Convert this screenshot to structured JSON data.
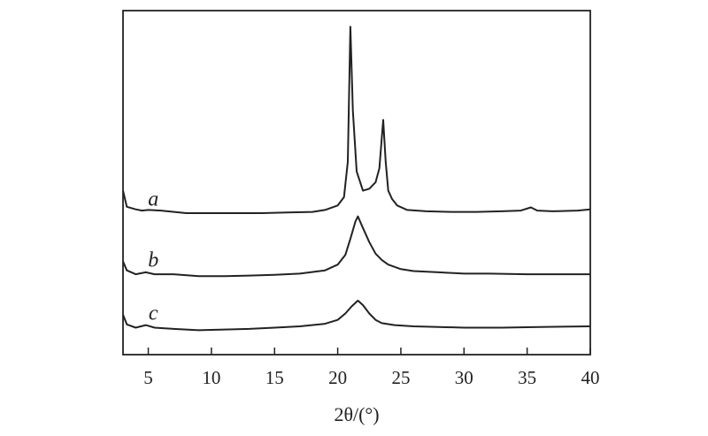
{
  "chart_data": {
    "type": "line",
    "title": "",
    "xlabel": "2θ/(°)",
    "ylabel": "",
    "xlim": [
      3,
      40
    ],
    "xticks": [
      5,
      10,
      15,
      20,
      25,
      30,
      35,
      40
    ],
    "xtick_labels": [
      "5",
      "10",
      "15",
      "20",
      "25",
      "30",
      "35",
      "40"
    ],
    "yticks_shown": false,
    "grid": false,
    "legend": "none",
    "series": [
      {
        "name": "a",
        "offset": 2.2,
        "x": [
          3,
          3.3,
          4,
          4.5,
          5,
          6,
          8,
          10,
          12,
          14,
          16,
          18,
          19,
          20,
          20.5,
          20.8,
          21.0,
          21.2,
          21.5,
          22,
          22.5,
          23,
          23.3,
          23.6,
          23.8,
          24.0,
          24.3,
          24.7,
          25.5,
          27,
          29,
          31,
          33,
          34.5,
          35.3,
          35.8,
          37,
          39,
          40
        ],
        "y": [
          0.35,
          0.1,
          0.06,
          0.04,
          0.05,
          0.04,
          0.0,
          0.0,
          0.0,
          0.0,
          0.01,
          0.02,
          0.05,
          0.12,
          0.25,
          0.8,
          2.9,
          1.6,
          0.65,
          0.35,
          0.38,
          0.48,
          0.7,
          1.45,
          0.8,
          0.35,
          0.22,
          0.12,
          0.05,
          0.03,
          0.02,
          0.02,
          0.03,
          0.04,
          0.09,
          0.04,
          0.03,
          0.04,
          0.06
        ]
      },
      {
        "name": "b",
        "offset": 1.25,
        "x": [
          3,
          3.3,
          4,
          4.8,
          5.5,
          7,
          9,
          11,
          13,
          15,
          17,
          19,
          20,
          20.6,
          21,
          21.4,
          21.6,
          22,
          22.5,
          23,
          23.5,
          24,
          25,
          26,
          28,
          30,
          32,
          35,
          38,
          40
        ],
        "y": [
          0.2,
          0.06,
          0.0,
          0.03,
          0.0,
          0.0,
          -0.03,
          -0.03,
          -0.02,
          -0.01,
          0.01,
          0.06,
          0.15,
          0.3,
          0.55,
          0.82,
          0.9,
          0.72,
          0.5,
          0.32,
          0.22,
          0.15,
          0.08,
          0.05,
          0.03,
          0.01,
          0.01,
          0.0,
          0.0,
          0.0
        ]
      },
      {
        "name": "c",
        "offset": 0.42,
        "x": [
          3,
          3.3,
          4,
          4.8,
          5.5,
          7,
          9,
          11,
          13,
          15,
          17,
          19,
          20,
          20.6,
          21.1,
          21.6,
          22,
          22.5,
          23,
          23.5,
          24.5,
          26,
          28,
          30,
          33,
          36,
          40
        ],
        "y": [
          0.2,
          0.05,
          0.0,
          0.04,
          0.0,
          -0.02,
          -0.04,
          -0.03,
          -0.02,
          0.0,
          0.02,
          0.06,
          0.12,
          0.22,
          0.33,
          0.42,
          0.35,
          0.22,
          0.12,
          0.07,
          0.04,
          0.02,
          0.01,
          0.0,
          0.0,
          0.01,
          0.02
        ]
      }
    ]
  }
}
